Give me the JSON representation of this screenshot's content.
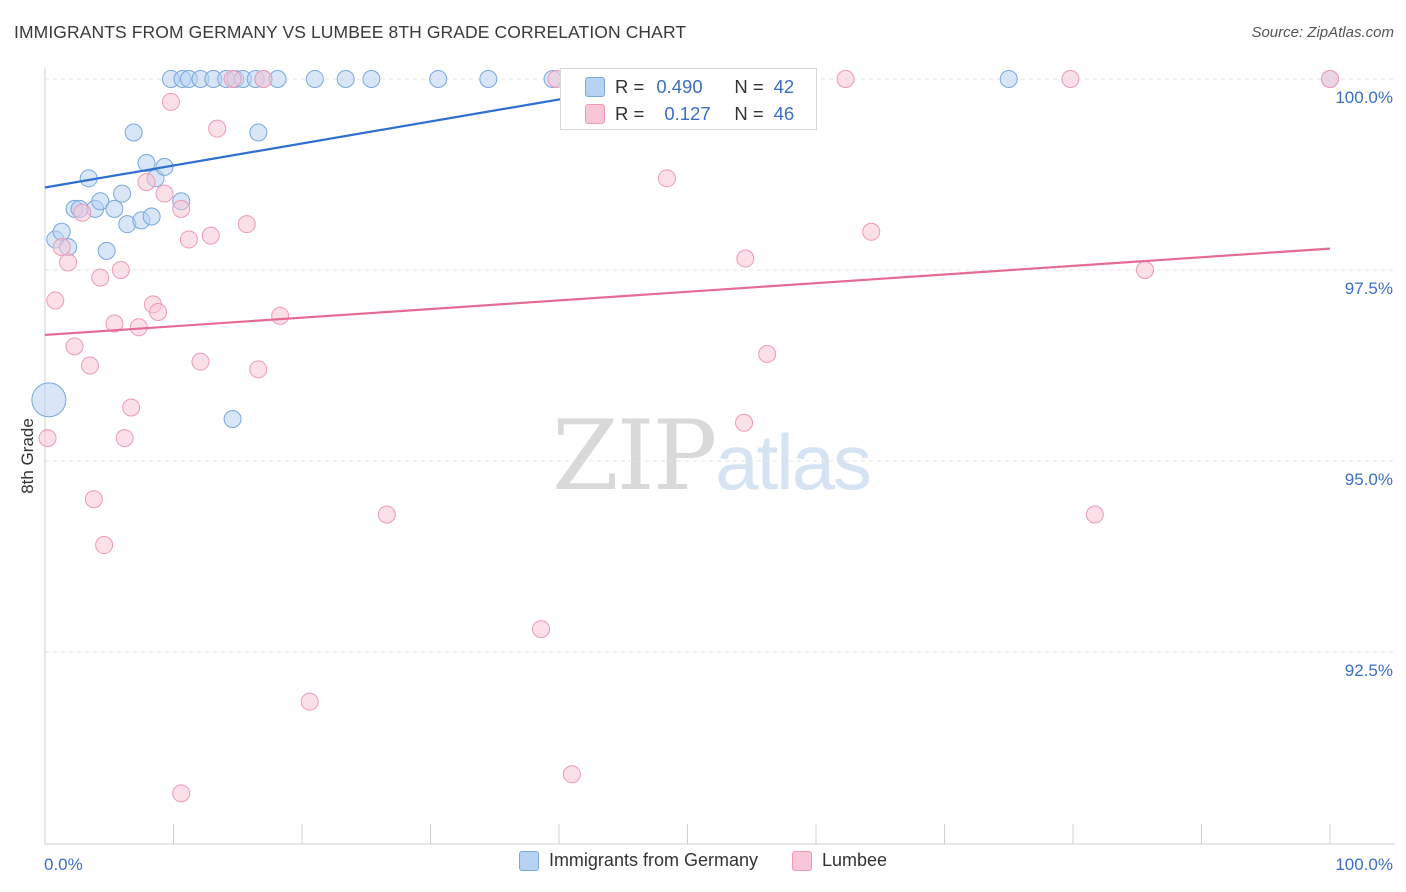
{
  "title": "IMMIGRANTS FROM GERMANY VS LUMBEE 8TH GRADE CORRELATION CHART",
  "source": "Source: ZipAtlas.com",
  "watermark": {
    "zip": "ZIP",
    "atlas": "atlas"
  },
  "colors": {
    "blue_fill": "#b8d2f2",
    "blue_stroke": "#7ba7de",
    "blue_line": "#2f6fcf",
    "pink_fill": "#f8c6d6",
    "pink_stroke": "#ee9ab5",
    "pink_line": "#e56b93",
    "grid": "#e3e3e3",
    "tick_label": "#3b6fc5"
  },
  "stats_box": {
    "rows": [
      {
        "r_label": "R =",
        "r_value": "0.490",
        "n_label": "N =",
        "n_value": "42"
      },
      {
        "r_label": "R =",
        "r_value": "0.127",
        "n_label": "N =",
        "n_value": "46"
      }
    ]
  },
  "legend": [
    {
      "label": "Immigrants from Germany"
    },
    {
      "label": "Lumbee"
    }
  ],
  "chart_data": {
    "type": "scatter",
    "title": "IMMIGRANTS FROM GERMANY VS LUMBEE 8TH GRADE CORRELATION CHART",
    "xlabel": "",
    "ylabel": "8th Grade",
    "xlim": [
      0,
      100
    ],
    "ylim": [
      90.2,
      100.25
    ],
    "x_tick_labels": [
      {
        "x": 0,
        "label": "0.0%"
      },
      {
        "x": 100,
        "label": "100.0%"
      }
    ],
    "y_ticks": [
      {
        "y": 92.5,
        "label": "92.5%"
      },
      {
        "y": 95.0,
        "label": "95.0%"
      },
      {
        "y": 97.5,
        "label": "97.5%"
      },
      {
        "y": 100.0,
        "label": "100.0%"
      }
    ],
    "series": [
      {
        "name": "Immigrants from Germany",
        "R": 0.49,
        "N": 42,
        "trend": {
          "x0": 0,
          "y0": 98.58,
          "x1": 50,
          "y1": 100.02
        },
        "points": [
          {
            "x": 0.3,
            "y": 95.8,
            "big": true
          },
          {
            "x": 0.8,
            "y": 97.9
          },
          {
            "x": 1.3,
            "y": 98.0
          },
          {
            "x": 1.8,
            "y": 97.8
          },
          {
            "x": 2.3,
            "y": 98.3
          },
          {
            "x": 2.7,
            "y": 98.3
          },
          {
            "x": 3.4,
            "y": 98.7
          },
          {
            "x": 3.9,
            "y": 98.3
          },
          {
            "x": 4.3,
            "y": 98.4
          },
          {
            "x": 4.8,
            "y": 97.75
          },
          {
            "x": 5.4,
            "y": 98.3
          },
          {
            "x": 6.0,
            "y": 98.5
          },
          {
            "x": 6.4,
            "y": 98.1
          },
          {
            "x": 6.9,
            "y": 99.3
          },
          {
            "x": 7.5,
            "y": 98.15
          },
          {
            "x": 7.9,
            "y": 98.9
          },
          {
            "x": 8.3,
            "y": 98.2
          },
          {
            "x": 8.6,
            "y": 98.7
          },
          {
            "x": 9.3,
            "y": 98.85
          },
          {
            "x": 10.6,
            "y": 98.4
          },
          {
            "x": 14.6,
            "y": 95.55
          },
          {
            "x": 16.6,
            "y": 99.3
          },
          {
            "x": 9.8,
            "y": 100.0
          },
          {
            "x": 10.7,
            "y": 100.0
          },
          {
            "x": 11.2,
            "y": 100.0
          },
          {
            "x": 12.1,
            "y": 100.0
          },
          {
            "x": 13.1,
            "y": 100.0
          },
          {
            "x": 14.1,
            "y": 100.0
          },
          {
            "x": 14.8,
            "y": 100.0
          },
          {
            "x": 15.4,
            "y": 100.0
          },
          {
            "x": 16.4,
            "y": 100.0
          },
          {
            "x": 17.0,
            "y": 100.0
          },
          {
            "x": 18.1,
            "y": 100.0
          },
          {
            "x": 21.0,
            "y": 100.0
          },
          {
            "x": 23.4,
            "y": 100.0
          },
          {
            "x": 25.4,
            "y": 100.0
          },
          {
            "x": 30.6,
            "y": 100.0
          },
          {
            "x": 34.5,
            "y": 100.0
          },
          {
            "x": 39.5,
            "y": 100.0
          },
          {
            "x": 47.5,
            "y": 100.0
          },
          {
            "x": 75.0,
            "y": 100.0
          },
          {
            "x": 100.0,
            "y": 100.0
          }
        ]
      },
      {
        "name": "Lumbee",
        "R": 0.127,
        "N": 46,
        "trend": {
          "x0": 0,
          "y0": 96.65,
          "x1": 100,
          "y1": 97.78
        },
        "points": [
          {
            "x": 0.2,
            "y": 95.3
          },
          {
            "x": 0.8,
            "y": 97.1
          },
          {
            "x": 1.3,
            "y": 97.8
          },
          {
            "x": 1.8,
            "y": 97.6
          },
          {
            "x": 2.3,
            "y": 96.5
          },
          {
            "x": 2.9,
            "y": 98.25
          },
          {
            "x": 3.5,
            "y": 96.25
          },
          {
            "x": 3.8,
            "y": 94.5
          },
          {
            "x": 4.3,
            "y": 97.4
          },
          {
            "x": 4.6,
            "y": 93.9
          },
          {
            "x": 5.4,
            "y": 96.8
          },
          {
            "x": 5.9,
            "y": 97.5
          },
          {
            "x": 6.2,
            "y": 95.3
          },
          {
            "x": 6.7,
            "y": 95.7
          },
          {
            "x": 7.3,
            "y": 96.75
          },
          {
            "x": 7.9,
            "y": 98.65
          },
          {
            "x": 8.4,
            "y": 97.05
          },
          {
            "x": 8.8,
            "y": 96.95
          },
          {
            "x": 9.3,
            "y": 98.5
          },
          {
            "x": 9.8,
            "y": 99.7
          },
          {
            "x": 10.6,
            "y": 98.3
          },
          {
            "x": 10.6,
            "y": 90.65
          },
          {
            "x": 11.2,
            "y": 97.9
          },
          {
            "x": 12.1,
            "y": 96.3
          },
          {
            "x": 12.9,
            "y": 97.95
          },
          {
            "x": 13.4,
            "y": 99.35
          },
          {
            "x": 14.6,
            "y": 100.0
          },
          {
            "x": 15.7,
            "y": 98.1
          },
          {
            "x": 16.6,
            "y": 96.2
          },
          {
            "x": 17.0,
            "y": 100.0
          },
          {
            "x": 18.3,
            "y": 96.9
          },
          {
            "x": 20.6,
            "y": 91.85
          },
          {
            "x": 26.6,
            "y": 94.3
          },
          {
            "x": 38.6,
            "y": 92.8
          },
          {
            "x": 39.8,
            "y": 100.0
          },
          {
            "x": 41.0,
            "y": 90.9
          },
          {
            "x": 48.4,
            "y": 98.7
          },
          {
            "x": 54.4,
            "y": 95.5
          },
          {
            "x": 54.5,
            "y": 97.65
          },
          {
            "x": 56.2,
            "y": 96.4
          },
          {
            "x": 62.3,
            "y": 100.0
          },
          {
            "x": 64.3,
            "y": 98.0
          },
          {
            "x": 79.8,
            "y": 100.0
          },
          {
            "x": 81.7,
            "y": 94.3
          },
          {
            "x": 85.6,
            "y": 97.5
          },
          {
            "x": 100.0,
            "y": 100.0
          }
        ]
      }
    ]
  }
}
